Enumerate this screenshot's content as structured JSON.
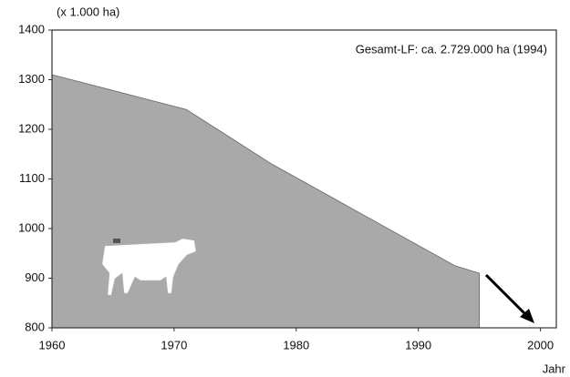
{
  "chart_data": {
    "type": "area",
    "y_label": "(x 1.000 ha)",
    "x_label": "Jahr",
    "annotation": "Gesamt-LF: ca. 2.729.000 ha (1994)",
    "x": [
      1960,
      1971,
      1978,
      1993,
      1995
    ],
    "values": [
      1310,
      1240,
      1130,
      925,
      910
    ],
    "color": "#a9a9a9",
    "xlim": [
      1960,
      2001.3
    ],
    "xticks": [
      1960,
      1970,
      1980,
      1990,
      2000
    ],
    "ylim": [
      800,
      1400
    ],
    "yticks": [
      800,
      900,
      1000,
      1100,
      1200,
      1300,
      1400
    ]
  }
}
